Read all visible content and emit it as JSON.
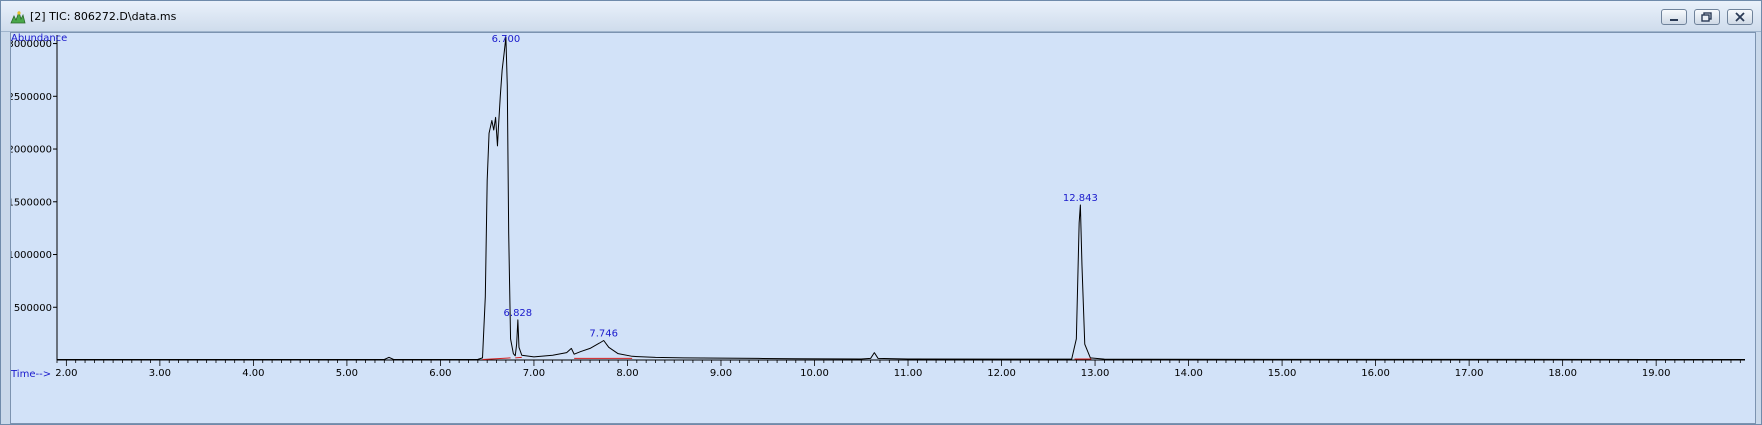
{
  "window": {
    "title": "[2] TIC: 806272.D\\data.ms",
    "app_icon": "chemstation-data-icon",
    "controls": [
      "minimize-icon",
      "restore-icon",
      "close-icon"
    ]
  },
  "chart_data": {
    "type": "line",
    "ylabel": "Abundance",
    "xlabel": "Time-->",
    "xlim": [
      1.9,
      19.95
    ],
    "ylim": [
      0,
      3100000
    ],
    "x_ticks": [
      "2.00",
      "3.00",
      "4.00",
      "5.00",
      "6.00",
      "7.00",
      "8.00",
      "9.00",
      "10.00",
      "11.00",
      "12.00",
      "13.00",
      "14.00",
      "15.00",
      "16.00",
      "17.00",
      "18.00",
      "19.00"
    ],
    "y_ticks": [
      "500000",
      "1000000",
      "1500000",
      "2000000",
      "2500000",
      "3000000"
    ],
    "grid": false,
    "colors": {
      "trace": "#000000",
      "baseline": "#d42020",
      "labels": "#1a1acc"
    },
    "series": [
      {
        "points": [
          [
            1.9,
            5000
          ],
          [
            5.4,
            5000
          ],
          [
            5.45,
            25000
          ],
          [
            5.5,
            5000
          ],
          [
            6.4,
            6000
          ],
          [
            6.45,
            20000
          ],
          [
            6.48,
            600000
          ],
          [
            6.5,
            1700000
          ],
          [
            6.52,
            2150000
          ],
          [
            6.55,
            2270000
          ],
          [
            6.57,
            2180000
          ],
          [
            6.59,
            2300000
          ],
          [
            6.61,
            2030000
          ],
          [
            6.62,
            2200000
          ],
          [
            6.64,
            2500000
          ],
          [
            6.66,
            2750000
          ],
          [
            6.68,
            2900000
          ],
          [
            6.7,
            3060000
          ],
          [
            6.715,
            2600000
          ],
          [
            6.73,
            1200000
          ],
          [
            6.75,
            200000
          ],
          [
            6.78,
            60000
          ],
          [
            6.8,
            40000
          ],
          [
            6.815,
            150000
          ],
          [
            6.828,
            380000
          ],
          [
            6.84,
            120000
          ],
          [
            6.87,
            45000
          ],
          [
            7.0,
            30000
          ],
          [
            7.2,
            45000
          ],
          [
            7.35,
            70000
          ],
          [
            7.4,
            110000
          ],
          [
            7.43,
            55000
          ],
          [
            7.5,
            80000
          ],
          [
            7.6,
            110000
          ],
          [
            7.7,
            160000
          ],
          [
            7.746,
            185000
          ],
          [
            7.8,
            120000
          ],
          [
            7.9,
            60000
          ],
          [
            8.05,
            35000
          ],
          [
            8.3,
            25000
          ],
          [
            8.6,
            20000
          ],
          [
            9.0,
            18000
          ],
          [
            9.4,
            15000
          ],
          [
            9.8,
            12000
          ],
          [
            10.5,
            10000
          ],
          [
            10.6,
            15000
          ],
          [
            10.64,
            70000
          ],
          [
            10.68,
            15000
          ],
          [
            11.0,
            9000
          ],
          [
            12.0,
            8000
          ],
          [
            12.75,
            8000
          ],
          [
            12.8,
            200000
          ],
          [
            12.83,
            1300000
          ],
          [
            12.843,
            1470000
          ],
          [
            12.86,
            900000
          ],
          [
            12.89,
            150000
          ],
          [
            12.95,
            20000
          ],
          [
            13.1,
            8000
          ],
          [
            15.0,
            6000
          ],
          [
            19.95,
            5000
          ]
        ]
      }
    ],
    "peak_labels": [
      {
        "text": "6.700",
        "x": 6.7,
        "y": 3060000
      },
      {
        "text": "6.828",
        "x": 6.828,
        "y": 380000
      },
      {
        "text": "7.746",
        "x": 7.746,
        "y": 185000
      },
      {
        "text": "12.843",
        "x": 12.843,
        "y": 1470000
      }
    ],
    "baselines": [
      {
        "x": [
          6.45,
          6.75
        ],
        "y": [
          5000,
          20000
        ]
      },
      {
        "x": [
          6.8,
          6.87
        ],
        "y": [
          20000,
          25000
        ]
      },
      {
        "x": [
          7.43,
          8.05
        ],
        "y": [
          15000,
          15000
        ]
      },
      {
        "x": [
          12.78,
          12.96
        ],
        "y": [
          10000,
          10000
        ]
      }
    ]
  }
}
